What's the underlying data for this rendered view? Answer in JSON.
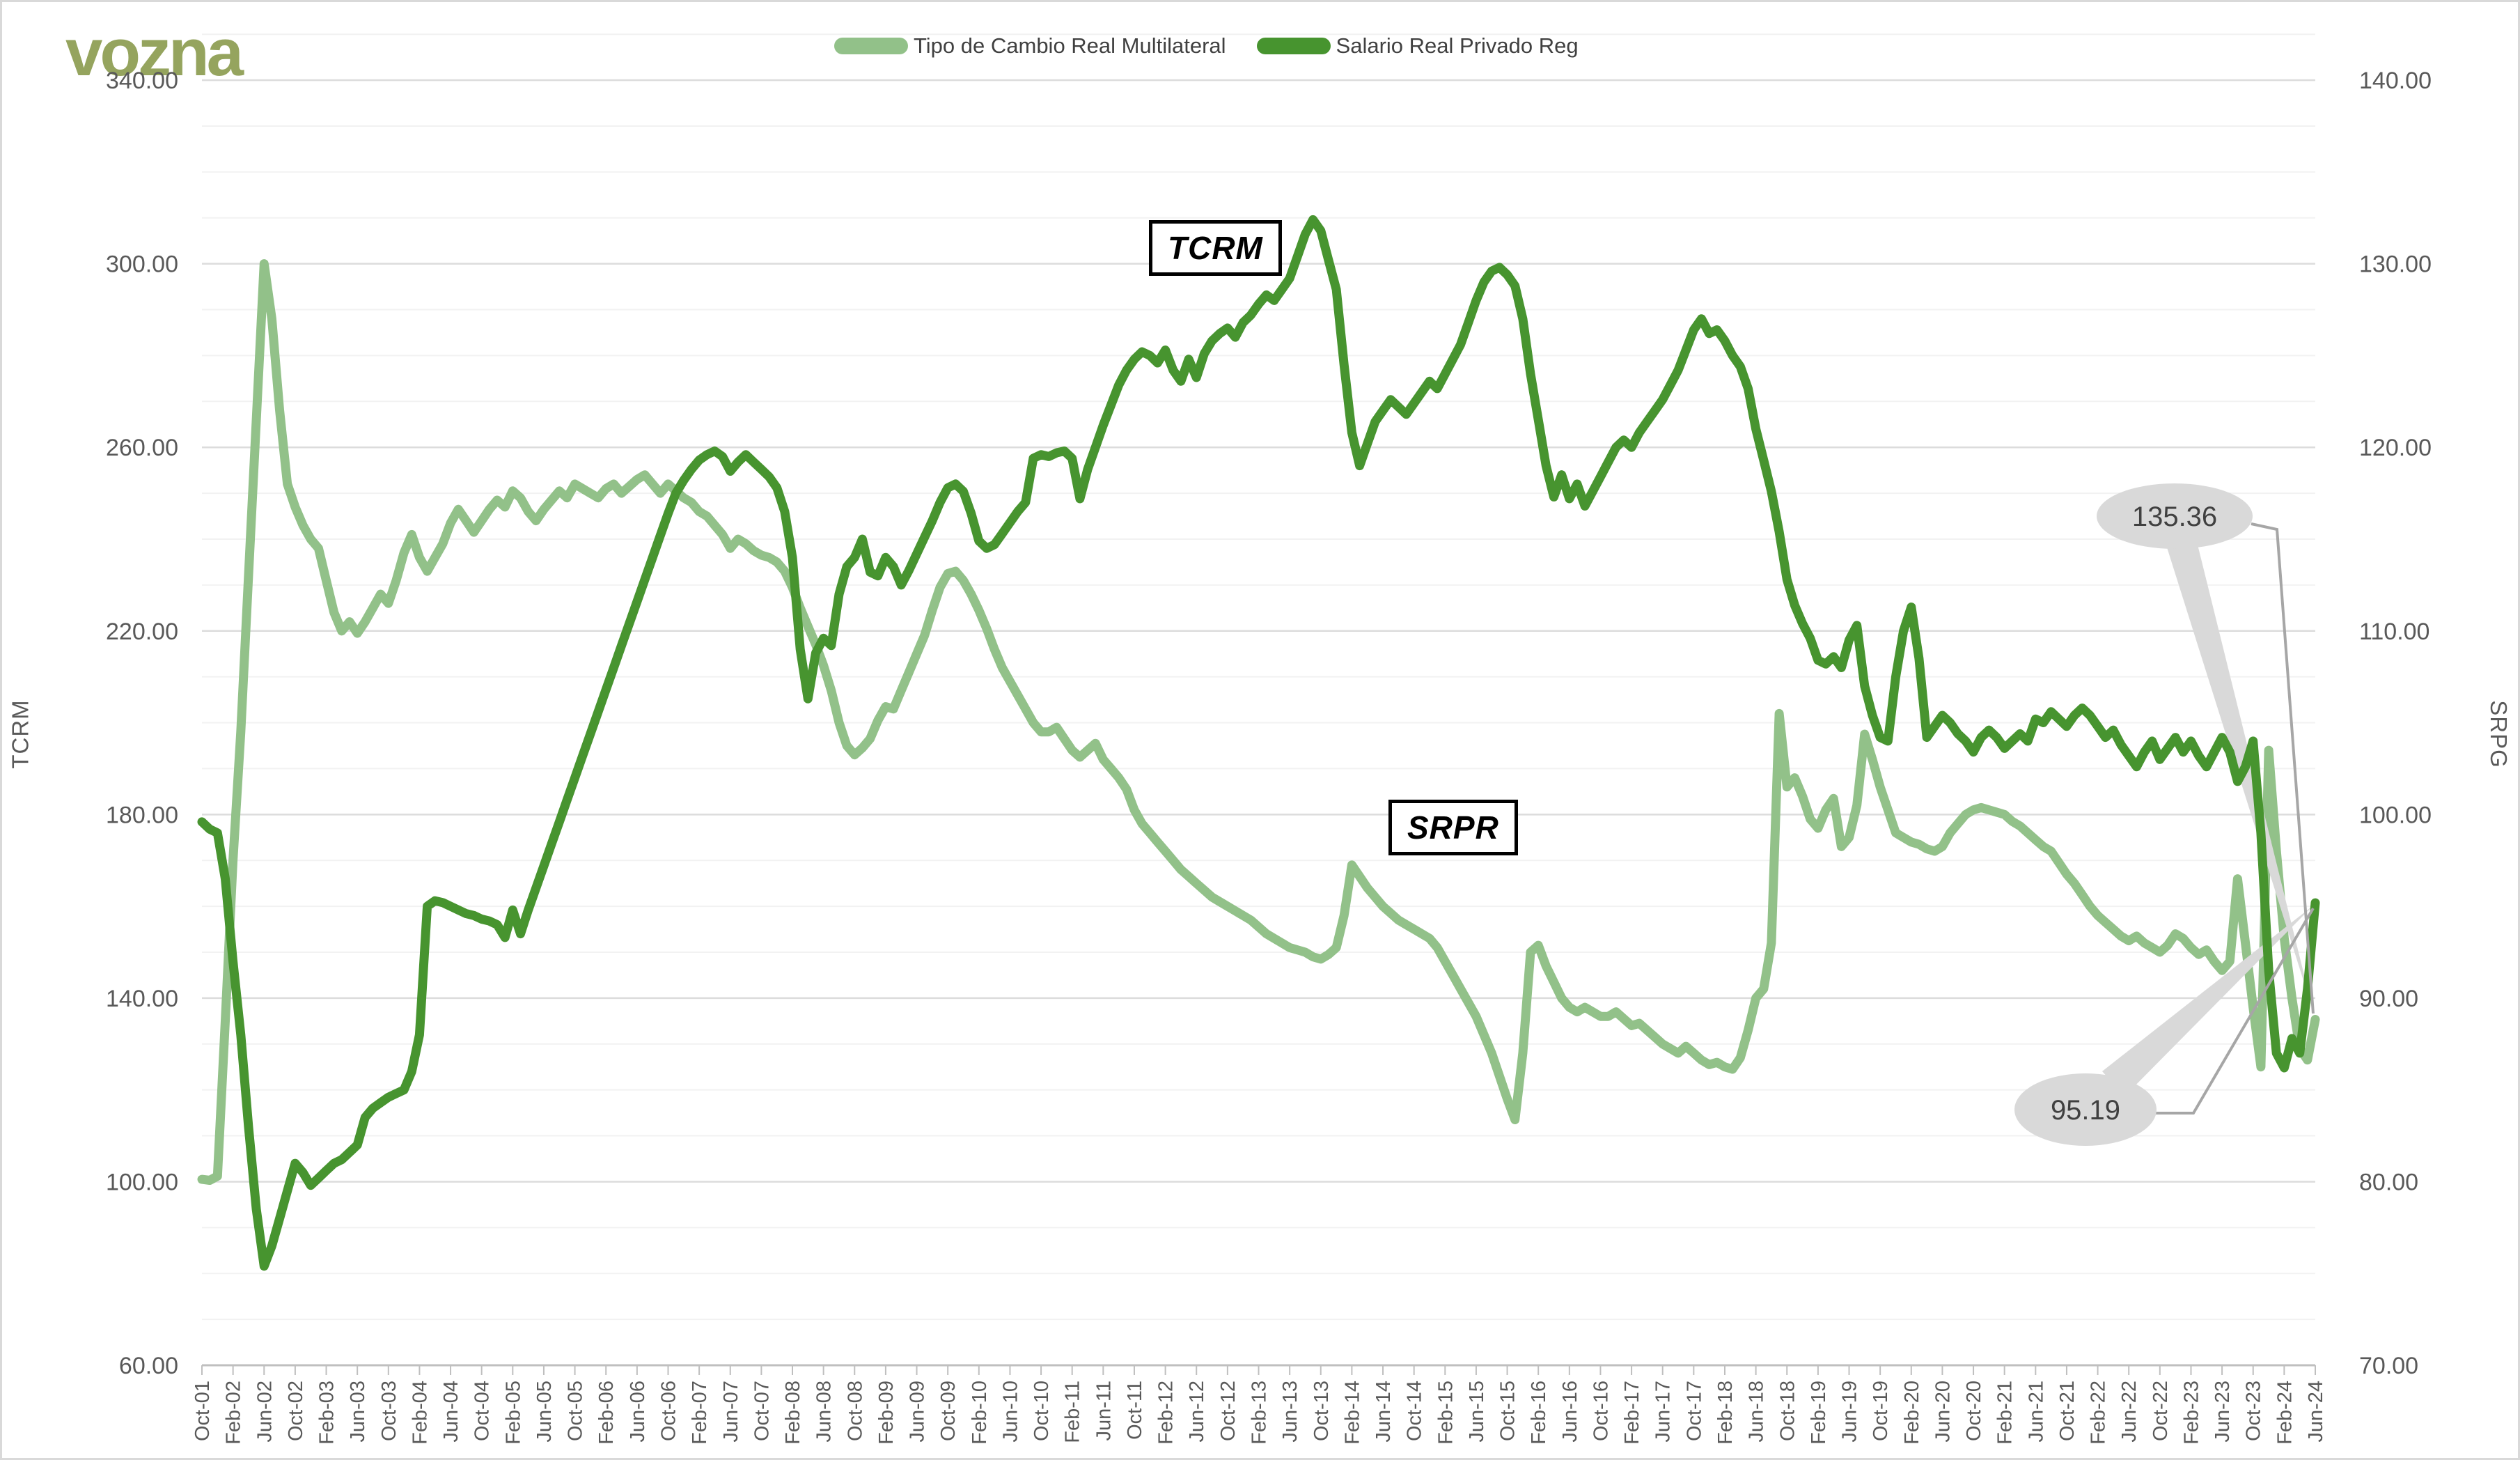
{
  "logo": {
    "text": "vozna",
    "color": "#95A45E"
  },
  "legend": [
    {
      "label": "Tipo de Cambio Real Multilateral",
      "color": "#92C189"
    },
    {
      "label": "Salario Real Privado Reg",
      "color": "#47942F"
    }
  ],
  "axes": {
    "left_title": "TCRM",
    "right_title": "SRPG",
    "left_tick_labels": [
      "340.00",
      "300.00",
      "260.00",
      "220.00",
      "180.00",
      "140.00",
      "100.00",
      "60.00"
    ],
    "right_tick_labels": [
      "140.00",
      "130.00",
      "120.00",
      "110.00",
      "100.00",
      "90.00",
      "80.00",
      "70.00"
    ],
    "tick_color": "#595959"
  },
  "annotations": {
    "tcrm_box_label": "TCRM",
    "srpr_box_label": "SRPR"
  },
  "callouts": {
    "tcrm": {
      "value": "135.36"
    },
    "srpr": {
      "value": "95.19"
    }
  },
  "chart_data": {
    "type": "line",
    "title": "",
    "xlabel": "",
    "x_start": "Oct-2001",
    "x_end": "Jun-2024",
    "x_frequency": "monthly",
    "x_tick_step": 4,
    "x_tick_labels": [
      "Oct-01",
      "Feb-02",
      "Jun-02",
      "Oct-02",
      "Feb-03",
      "Jun-03",
      "Oct-03",
      "Feb-04",
      "Jun-04",
      "Oct-04",
      "Feb-05",
      "Jun-05",
      "Oct-05",
      "Feb-06",
      "Jun-06",
      "Oct-06",
      "Feb-07",
      "Jun-07",
      "Oct-07",
      "Feb-08",
      "Jun-08",
      "Oct-08",
      "Feb-09",
      "Jun-09",
      "Oct-09",
      "Feb-10",
      "Jun-10",
      "Oct-10",
      "Feb-11",
      "Jun-11",
      "Oct-11",
      "Feb-12",
      "Jun-12",
      "Oct-12",
      "Feb-13",
      "Jun-13",
      "Oct-13",
      "Feb-14",
      "Jun-14",
      "Oct-14",
      "Feb-15",
      "Jun-15",
      "Oct-15",
      "Feb-16",
      "Jun-16",
      "Oct-16",
      "Feb-17",
      "Jun-17",
      "Oct-17",
      "Feb-18",
      "Jun-18",
      "Oct-18",
      "Feb-19",
      "Jun-19",
      "Oct-19",
      "Feb-20",
      "Jun-20",
      "Oct-20",
      "Feb-21",
      "Jun-21",
      "Oct-21",
      "Feb-22",
      "Jun-22",
      "Oct-22",
      "Feb-23",
      "Jun-23",
      "Oct-23",
      "Feb-24",
      "Jun-24"
    ],
    "ylim_left": [
      60,
      350
    ],
    "ylim_right": [
      70,
      142.5
    ],
    "grid": {
      "minor_step_left": 10,
      "major_step_left": 40,
      "minor_color": "#f2f2f2",
      "major_color": "#dcdcdc",
      "axis_line_color": "#bfbfbf"
    },
    "legend_position": "top-center",
    "series": [
      {
        "name": "Tipo de Cambio Real Multilateral",
        "short_name": "TCRM",
        "axis": "left",
        "color": "#92C189",
        "last_value": 135.36,
        "values": [
          100.5,
          100.3,
          101.2,
          135,
          170,
          198,
          232,
          266,
          300,
          288,
          268,
          252,
          247,
          243,
          240,
          238,
          231,
          224,
          220,
          222,
          219.5,
          222,
          225,
          228,
          226,
          231,
          237,
          241,
          236,
          233,
          236,
          239,
          243.5,
          246.5,
          244,
          241.5,
          244,
          246.5,
          248.5,
          247,
          250.5,
          249,
          246,
          244,
          246.5,
          248.5,
          250.5,
          249,
          252,
          251,
          250,
          249,
          251,
          252,
          250,
          251.5,
          253,
          254,
          252,
          250,
          252,
          250.5,
          249,
          248,
          246,
          245,
          243,
          241,
          238,
          240,
          239,
          237.5,
          236.5,
          236,
          235,
          233,
          229.5,
          225,
          221,
          217,
          212.5,
          207,
          200,
          195,
          193,
          194.5,
          196.5,
          200.5,
          203.5,
          203,
          207,
          211,
          215,
          219,
          224.5,
          229.5,
          232.5,
          233,
          231,
          228,
          224.5,
          220.5,
          216,
          212,
          209,
          206,
          203,
          200,
          198,
          198,
          199,
          196.5,
          194,
          192.5,
          194,
          195.5,
          192,
          190,
          188,
          185.5,
          181,
          178,
          176,
          174,
          172,
          170,
          168,
          166.5,
          165,
          163.5,
          162,
          161,
          160,
          159,
          158,
          157,
          155.5,
          154,
          153,
          152,
          151,
          150.5,
          150,
          149,
          148.5,
          149.5,
          151,
          158,
          169,
          166.5,
          164,
          162,
          160,
          158.5,
          157,
          156,
          155,
          154,
          153,
          151,
          148,
          145,
          142,
          139,
          136,
          132,
          128,
          123,
          118,
          113.5,
          128,
          150,
          151.5,
          147,
          143.5,
          140,
          138,
          137,
          138,
          137,
          136,
          136,
          137,
          135.5,
          134,
          134.5,
          133,
          131.5,
          130,
          129,
          128,
          129.5,
          128,
          126.5,
          125.5,
          126,
          125,
          124.5,
          127,
          133,
          140,
          142,
          152,
          202,
          186,
          188,
          184,
          179,
          177,
          181,
          183.5,
          173,
          175,
          182,
          197.5,
          192,
          186,
          181,
          176,
          175,
          174,
          173.5,
          172.5,
          172,
          173,
          176,
          178,
          180,
          181,
          181.5,
          181,
          180.5,
          180,
          178.5,
          177.5,
          176,
          174.5,
          173,
          172,
          169.5,
          167,
          165,
          162.5,
          160,
          158,
          156.5,
          155,
          153.5,
          152.5,
          153.5,
          152,
          151,
          150,
          151.5,
          154,
          153,
          151,
          149.5,
          150.5,
          148,
          146,
          148,
          166,
          152,
          138,
          125,
          194,
          172,
          153,
          140,
          129,
          126.5,
          135.36
        ]
      },
      {
        "name": "Salario Real Privado Reg",
        "short_name": "SRPR",
        "axis": "right",
        "color": "#47942F",
        "last_value": 95.19,
        "values": [
          99.6,
          99.2,
          99,
          96.5,
          92,
          88,
          83,
          78.5,
          75.4,
          76.5,
          78,
          79.5,
          81,
          80.5,
          79.8,
          80.2,
          80.6,
          81,
          81.2,
          81.6,
          82,
          83.5,
          84,
          84.3,
          84.6,
          84.8,
          85,
          86,
          88,
          95,
          95.3,
          95.2,
          95,
          94.8,
          94.6,
          94.5,
          94.3,
          94.2,
          94,
          93.3,
          94.8,
          93.5,
          94.8,
          96,
          97.2,
          98.4,
          99.6,
          100.8,
          102,
          103.2,
          104.4,
          105.6,
          106.8,
          108,
          109.2,
          110.4,
          111.6,
          112.8,
          114,
          115.2,
          116.4,
          117.5,
          118.2,
          118.8,
          119.3,
          119.6,
          119.8,
          119.5,
          118.7,
          119.2,
          119.6,
          119.2,
          118.8,
          118.4,
          117.8,
          116.5,
          114,
          109,
          106.3,
          108.8,
          109.6,
          109.2,
          112,
          113.5,
          114,
          115,
          113.2,
          113,
          114,
          113.5,
          112.5,
          113.3,
          114.2,
          115.1,
          116,
          117,
          117.8,
          118,
          117.6,
          116.4,
          114.9,
          114.5,
          114.7,
          115.3,
          115.9,
          116.5,
          117,
          119.4,
          119.6,
          119.5,
          119.7,
          119.8,
          119.4,
          117.2,
          118.8,
          120,
          121.2,
          122.3,
          123.4,
          124.2,
          124.8,
          125.2,
          125,
          124.6,
          125.3,
          124.2,
          123.6,
          124.8,
          123.8,
          125.1,
          125.8,
          126.2,
          126.5,
          126,
          126.8,
          127.2,
          127.8,
          128.3,
          128,
          128.6,
          129.2,
          130.4,
          131.6,
          132.4,
          131.8,
          130.2,
          128.6,
          124.5,
          120.8,
          119,
          120.2,
          121.4,
          122,
          122.6,
          122.2,
          121.8,
          122.4,
          123,
          123.6,
          123.2,
          124,
          124.8,
          125.6,
          126.8,
          128,
          129,
          129.6,
          129.8,
          129.4,
          128.8,
          127,
          124,
          121.5,
          119,
          117.3,
          118.5,
          117.2,
          118,
          116.8,
          117.6,
          118.4,
          119.2,
          120,
          120.4,
          120,
          120.8,
          121.4,
          122,
          122.6,
          123.4,
          124.2,
          125.3,
          126.4,
          127,
          126.2,
          126.4,
          125.8,
          125,
          124.4,
          123.2,
          121,
          119.3,
          117.6,
          115.4,
          112.8,
          111.4,
          110.4,
          109.6,
          108.4,
          108.2,
          108.6,
          108,
          109.5,
          110.3,
          107,
          105.4,
          104.2,
          104,
          107.5,
          110,
          111.3,
          108.5,
          104.2,
          104.8,
          105.4,
          105,
          104.4,
          104,
          103.4,
          104.2,
          104.6,
          104.2,
          103.6,
          104,
          104.4,
          104,
          105.2,
          105,
          105.6,
          105.2,
          104.8,
          105.4,
          105.8,
          105.4,
          104.8,
          104.2,
          104.6,
          103.8,
          103.2,
          102.6,
          103.4,
          104,
          103,
          103.6,
          104.2,
          103.4,
          104,
          103.2,
          102.6,
          103.4,
          104.2,
          103.4,
          101.8,
          102.6,
          104,
          99,
          91.5,
          87,
          86.2,
          87.8,
          87,
          90.5,
          95.19
        ]
      }
    ]
  }
}
